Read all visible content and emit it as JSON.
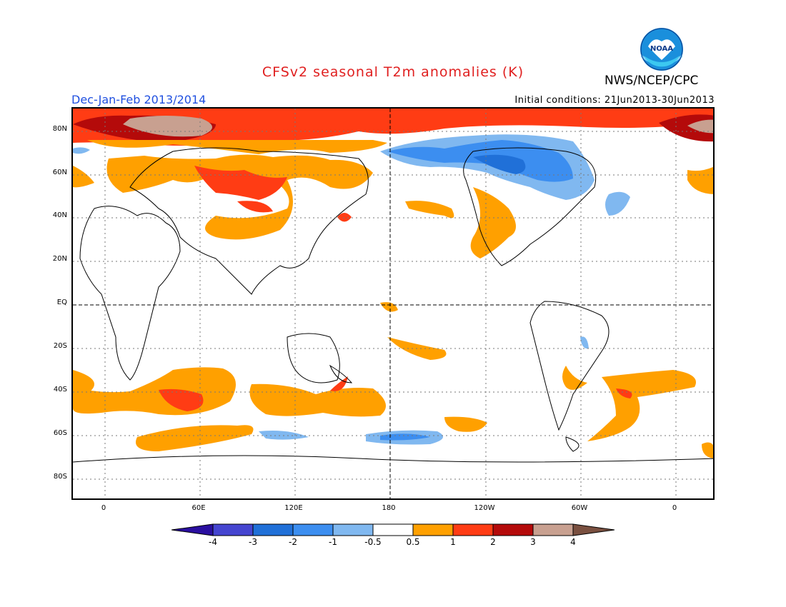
{
  "header": {
    "title": "CFSv2 seasonal T2m anomalies (K)",
    "org": "NWS/NCEP/CPC",
    "season": "Dec-Jan-Feb 2013/2014",
    "initial_conditions": "Initial conditions: 21Jun2013-30Jun2013",
    "logo_icon": "noaa-logo-icon",
    "logo_text": "NOAA"
  },
  "axes": {
    "lat_labels": [
      {
        "text": "80N",
        "lat": 80
      },
      {
        "text": "60N",
        "lat": 60
      },
      {
        "text": "40N",
        "lat": 40
      },
      {
        "text": "20N",
        "lat": 20
      },
      {
        "text": "EQ",
        "lat": 0
      },
      {
        "text": "20S",
        "lat": -20
      },
      {
        "text": "40S",
        "lat": -40
      },
      {
        "text": "60S",
        "lat": -60
      },
      {
        "text": "80S",
        "lat": -80
      }
    ],
    "lon_labels": [
      {
        "text": "0",
        "lon": 0
      },
      {
        "text": "60E",
        "lon": 60
      },
      {
        "text": "120E",
        "lon": 120
      },
      {
        "text": "180",
        "lon": 180
      },
      {
        "text": "120W",
        "lon": 240
      },
      {
        "text": "60W",
        "lon": 300
      },
      {
        "text": "0",
        "lon": 360
      }
    ]
  },
  "colorbar": {
    "levels": [
      "-4",
      "-3",
      "-2",
      "-1",
      "-0.5",
      "0.5",
      "1",
      "2",
      "3",
      "4"
    ],
    "colors": [
      "#2a0fa0",
      "#4545d0",
      "#2070d8",
      "#3c8ef0",
      "#80b8f0",
      "#ffffff",
      "#ffa000",
      "#ff3c14",
      "#b40a0a",
      "#c8a090",
      "#7a5040"
    ]
  },
  "colors": {
    "title": "#e02020",
    "season": "#2050e0",
    "warm_weak": "#ffa000",
    "warm_mid": "#ff3c14",
    "warm_strong": "#b40a0a",
    "warm_max": "#c8a090",
    "cold_weak": "#80b8f0",
    "cold_mid": "#3c8ef0",
    "cold_strong": "#2070d8"
  }
}
